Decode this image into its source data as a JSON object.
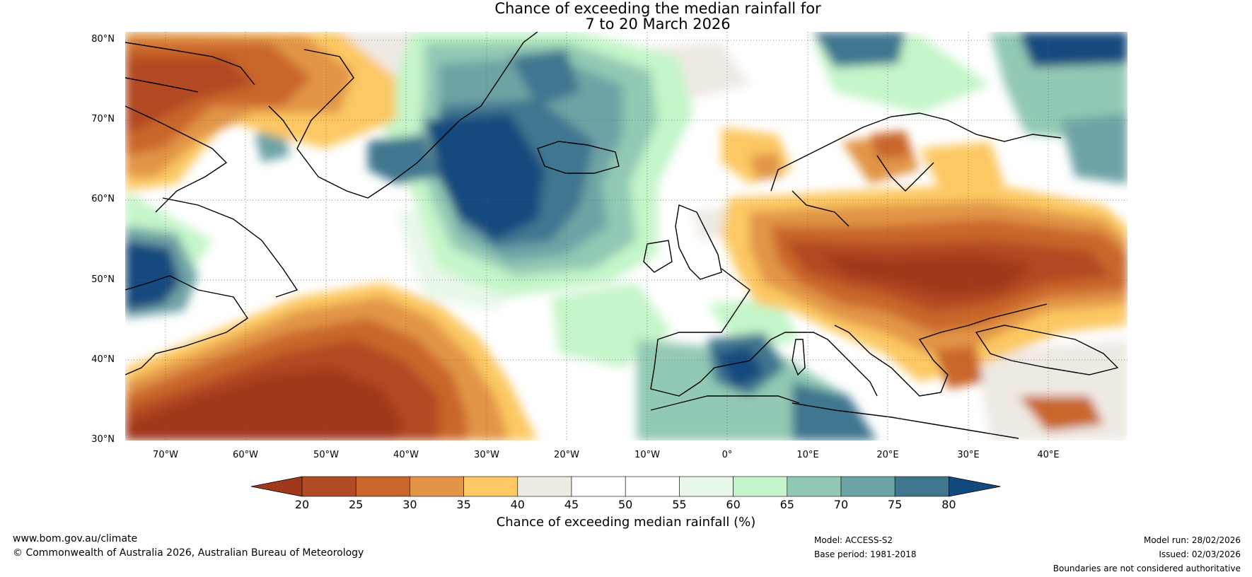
{
  "title": {
    "line1": "Chance of exceeding the median rainfall for",
    "line2": "7 to 20 March 2026"
  },
  "map": {
    "lat_labels": [
      "80°N",
      "70°N",
      "60°N",
      "50°N",
      "40°N",
      "30°N"
    ],
    "lon_labels": [
      "70°W",
      "60°W",
      "50°W",
      "40°W",
      "30°W",
      "20°W",
      "10°W",
      "0°",
      "10°E",
      "20°E",
      "30°E",
      "40°E"
    ],
    "lon_range": [
      -75,
      50
    ],
    "lat_range": [
      30,
      81
    ]
  },
  "colorbar": {
    "ticks": [
      "20",
      "25",
      "30",
      "35",
      "40",
      "45",
      "50",
      "55",
      "60",
      "65",
      "70",
      "75",
      "80"
    ],
    "colors": [
      "#a0391c",
      "#b24a24",
      "#c9662c",
      "#e29447",
      "#fcc864",
      "#efe9e3",
      "#ffffff",
      "#ffffff",
      "#e8f8e8",
      "#c4f5c8",
      "#92c9b4",
      "#6ea3a6",
      "#41768f",
      "#124a7d"
    ],
    "title": "Chance of exceeding median rainfall (%)"
  },
  "footer": {
    "website": "www.bom.gov.au/climate",
    "copyright": "© Commonwealth of Australia 2026, Australian Bureau of Meteorology",
    "model": "Model: ACCESS-S2",
    "base_period": "Base period: 1981-2018",
    "model_run": "Model run: 28/02/2026",
    "issued": "Issued: 02/03/2026",
    "disclaimer": "Boundaries are not considered authoritative"
  }
}
